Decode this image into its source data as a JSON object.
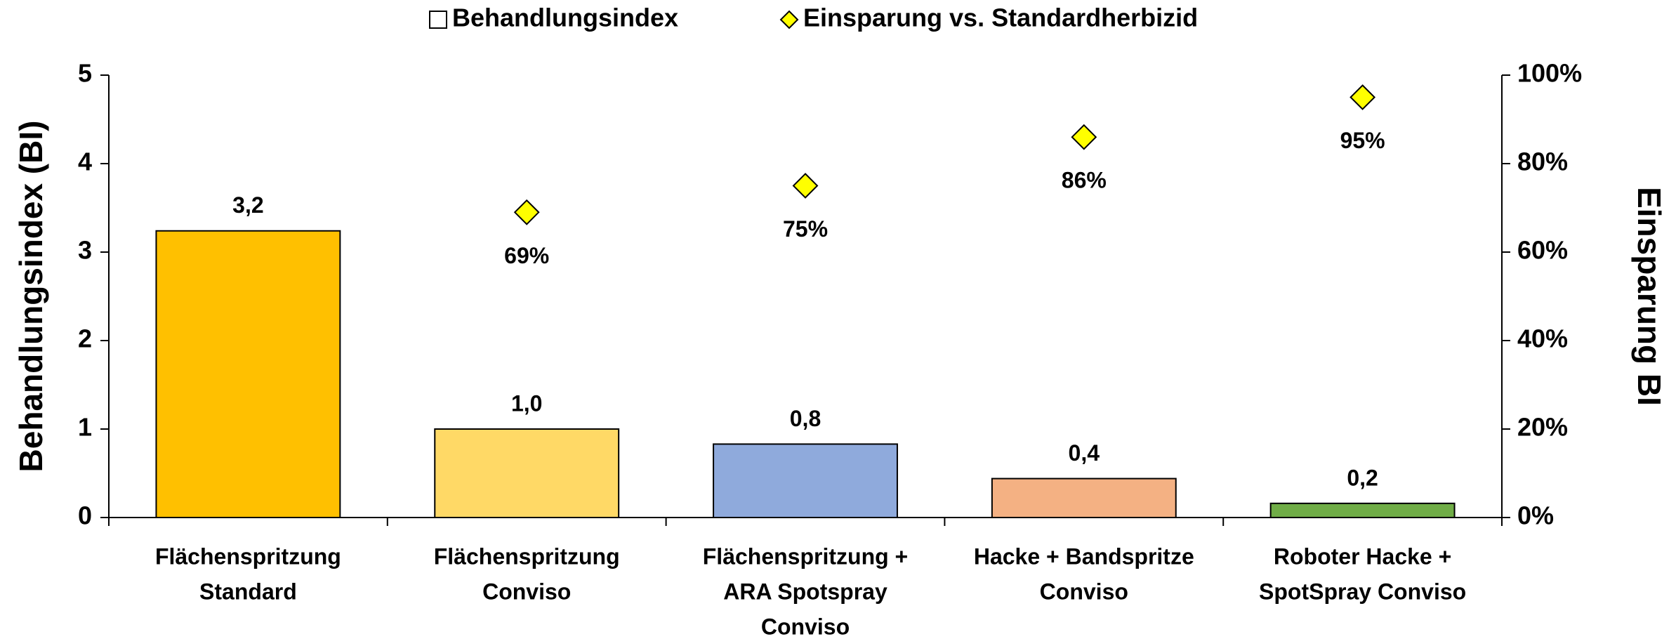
{
  "chart_data": {
    "type": "bar",
    "categories": [
      [
        "Flächenspritzung",
        "Standard"
      ],
      [
        "Flächenspritzung",
        "Conviso"
      ],
      [
        "Flächenspritzung +",
        "ARA Spotspray",
        "Conviso"
      ],
      [
        "Hacke + Bandspritze",
        "Conviso"
      ],
      [
        "Roboter Hacke +",
        "SpotSpray Conviso"
      ]
    ],
    "series": [
      {
        "name": "Behandlungsindex",
        "type": "bar",
        "colors": [
          "#ffc000",
          "#ffd966",
          "#8faadc",
          "#f4b183",
          "#70ad47"
        ],
        "values": [
          3.24,
          1.0,
          0.83,
          0.44,
          0.16
        ],
        "value_labels": [
          "3,2",
          "1,0",
          "0,8",
          "0,4",
          "0,2"
        ]
      },
      {
        "name": "Einsparung vs. Standardherbizid",
        "type": "scatter",
        "axis": "y2",
        "color": "#ffff00",
        "marker": "diamond",
        "values": [
          null,
          69,
          75,
          86,
          95
        ],
        "value_labels": [
          null,
          "69%",
          "75%",
          "86%",
          "95%"
        ]
      }
    ],
    "ylabel": "Behandlungsindex (BI)",
    "y2label": "Einsparung BI",
    "ylim": [
      0,
      5
    ],
    "yticks": [
      0,
      1,
      2,
      3,
      4,
      5
    ],
    "y2lim": [
      0,
      100
    ],
    "y2ticks": [
      {
        "value": 0,
        "label": "0%"
      },
      {
        "value": 20,
        "label": "20%"
      },
      {
        "value": 40,
        "label": "40%"
      },
      {
        "value": 60,
        "label": "60%"
      },
      {
        "value": 80,
        "label": "80%"
      },
      {
        "value": 100,
        "label": "100%"
      }
    ],
    "legend": "top"
  }
}
